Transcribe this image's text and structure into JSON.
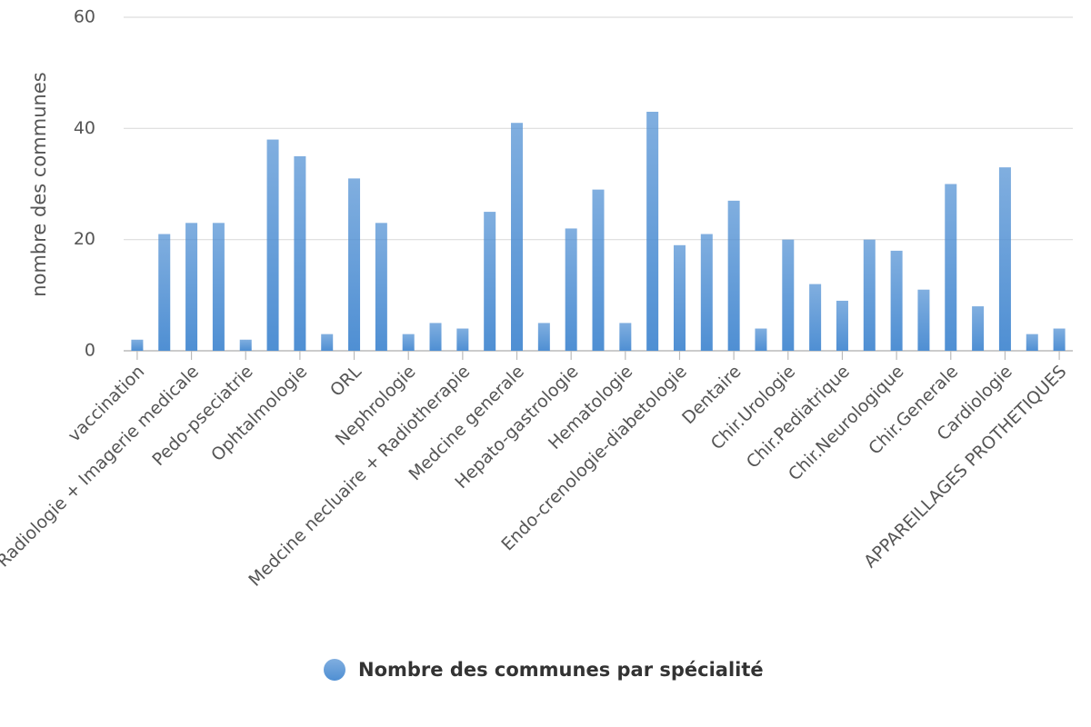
{
  "chart_data": {
    "type": "bar",
    "y_label": "nombre des communes",
    "categories": [
      "vaccination",
      null,
      "Radiologie + Imagerie medicale",
      null,
      "Pedo-pseciatrie",
      null,
      "Ophtalmologie",
      null,
      "ORL",
      null,
      "Nephrologie",
      null,
      "Medcine necluaire + Radiotherapie",
      null,
      "Medcine generale",
      null,
      "Hepato-gastrologie",
      null,
      "Hematologie",
      null,
      "Endo-crenologie-diabetologie",
      null,
      "Dentaire",
      null,
      "Chir.Urologie",
      null,
      "Chir.Pediatrique",
      null,
      "Chir.Neurologique",
      null,
      "Chir.Generale",
      null,
      "Cardiologie",
      null,
      "APPAREILLAGES PROTHETIQUES"
    ],
    "series": [
      {
        "name": "Nombre des communes par spécialité",
        "color": "#4f8fd3",
        "values": [
          2,
          21,
          23,
          23,
          2,
          38,
          35,
          3,
          31,
          23,
          3,
          5,
          4,
          25,
          41,
          5,
          22,
          29,
          5,
          43,
          19,
          21,
          27,
          4,
          20,
          12,
          9,
          20,
          18,
          11,
          30,
          8,
          33,
          3,
          4
        ]
      }
    ],
    "ylim": [
      0,
      60
    ],
    "yticks": [
      0,
      20,
      40,
      60
    ],
    "grid": true,
    "legend": "bottom"
  }
}
